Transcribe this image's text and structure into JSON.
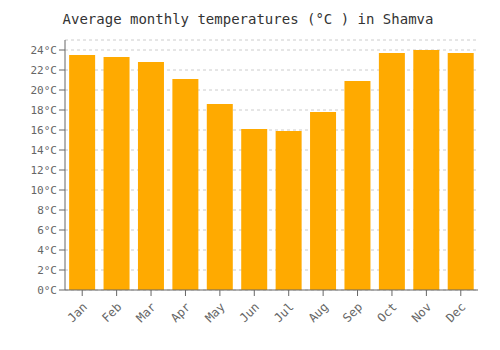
{
  "chart_data": {
    "type": "bar",
    "title": "Average monthly temperatures (°C ) in Shamva",
    "categories": [
      "Jan",
      "Feb",
      "Mar",
      "Apr",
      "May",
      "Jun",
      "Jul",
      "Aug",
      "Sep",
      "Oct",
      "Nov",
      "Dec"
    ],
    "values": [
      23.5,
      23.3,
      22.8,
      21.1,
      18.6,
      16.1,
      15.9,
      17.8,
      20.9,
      23.7,
      24.0,
      23.7
    ],
    "color": "#FFAA00",
    "ylim": [
      0,
      25
    ],
    "yticks": [
      {
        "value": 0,
        "label": "0°C"
      },
      {
        "value": 2,
        "label": "2°C"
      },
      {
        "value": 4,
        "label": "4°C"
      },
      {
        "value": 6,
        "label": "6°C"
      },
      {
        "value": 8,
        "label": "8°C"
      },
      {
        "value": 10,
        "label": "10°C"
      },
      {
        "value": 12,
        "label": "12°C"
      },
      {
        "value": 14,
        "label": "14°C"
      },
      {
        "value": 16,
        "label": "16°C"
      },
      {
        "value": 18,
        "label": "18°C"
      },
      {
        "value": 20,
        "label": "20°C"
      },
      {
        "value": 22,
        "label": "22°C"
      },
      {
        "value": 24,
        "label": "24°C"
      }
    ],
    "grid": true
  }
}
